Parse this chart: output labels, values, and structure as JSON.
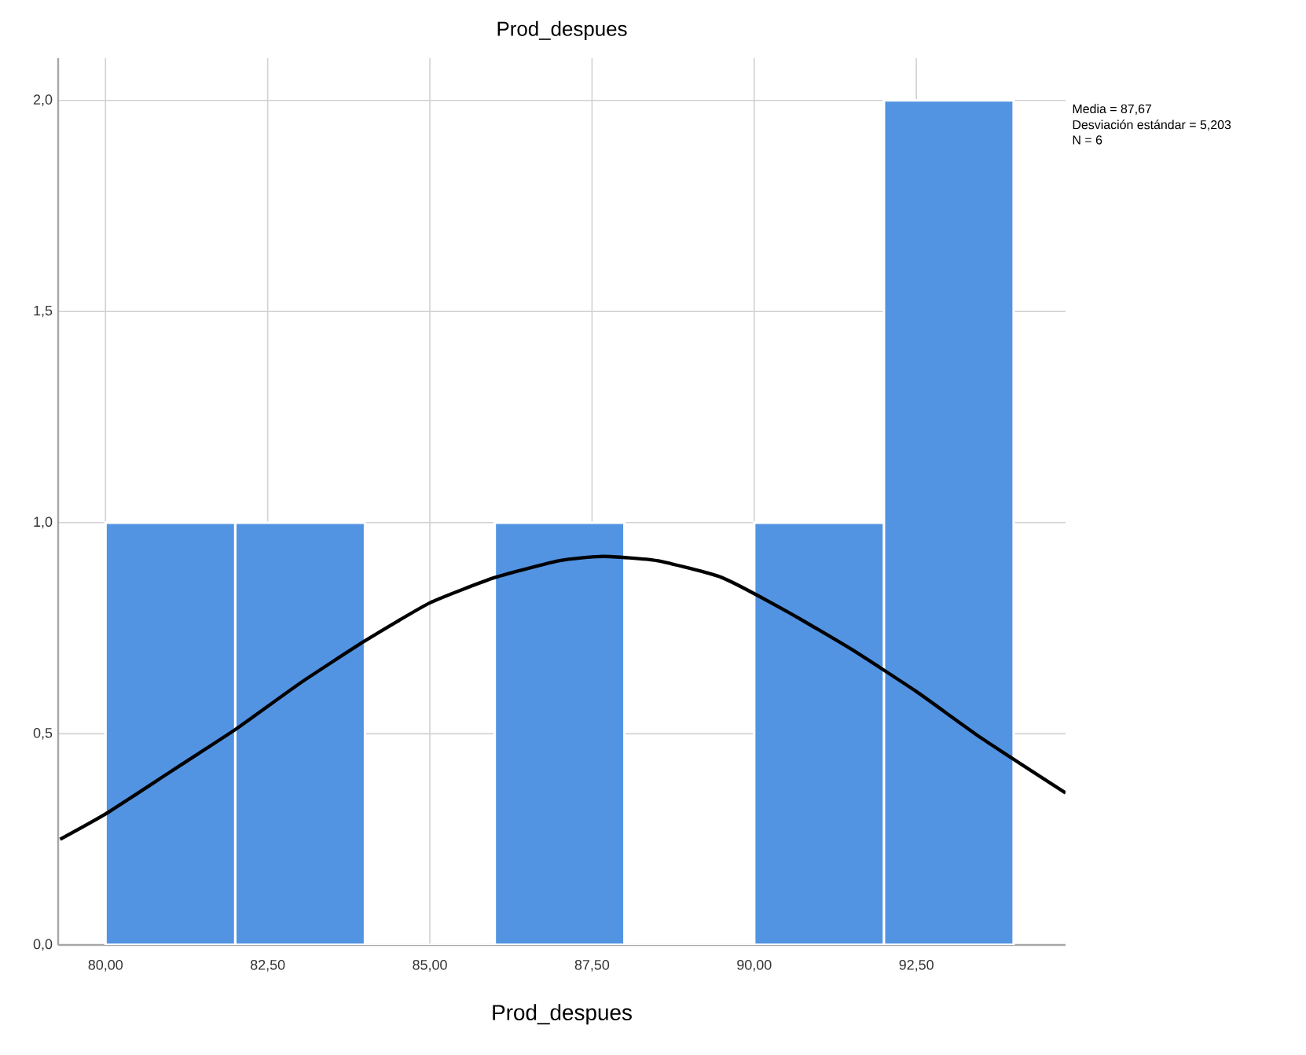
{
  "chart_data": {
    "type": "histogram",
    "title": "Prod_despues",
    "xlabel": "Prod_despues",
    "bins": [
      80,
      82,
      84,
      86,
      88,
      90,
      92,
      94
    ],
    "values": [
      1,
      1,
      0,
      1,
      0,
      1,
      2
    ],
    "color": "#5294e2",
    "series": [
      {
        "type": "line",
        "color": "#000000",
        "x": [
          79.3,
          80,
          81,
          82,
          83,
          84,
          85,
          86,
          87,
          87.67,
          88.5,
          89.5,
          90.5,
          91.5,
          92.5,
          93.5,
          94.8
        ],
        "values": [
          0.25,
          0.31,
          0.41,
          0.51,
          0.62,
          0.72,
          0.81,
          0.87,
          0.91,
          0.92,
          0.91,
          0.87,
          0.79,
          0.7,
          0.6,
          0.49,
          0.36
        ]
      }
    ],
    "xlim": [
      79.27,
      94.8
    ],
    "ylim": [
      0,
      2.1
    ],
    "xticks": [
      {
        "value": 80,
        "label": "80,00"
      },
      {
        "value": 82.5,
        "label": "82,50"
      },
      {
        "value": 85,
        "label": "85,00"
      },
      {
        "value": 87.5,
        "label": "87,50"
      },
      {
        "value": 90,
        "label": "90,00"
      },
      {
        "value": 92.5,
        "label": "92,50"
      }
    ],
    "yticks": [
      {
        "value": 0,
        "label": "0,0"
      },
      {
        "value": 0.5,
        "label": "0,5"
      },
      {
        "value": 1,
        "label": "1,0"
      },
      {
        "value": 1.5,
        "label": "1,5"
      },
      {
        "value": 2,
        "label": "2,0"
      }
    ],
    "grid": true,
    "annotations": [
      "Media = 87,67",
      "Desviación estándar = 5,203",
      "N = 6"
    ]
  }
}
